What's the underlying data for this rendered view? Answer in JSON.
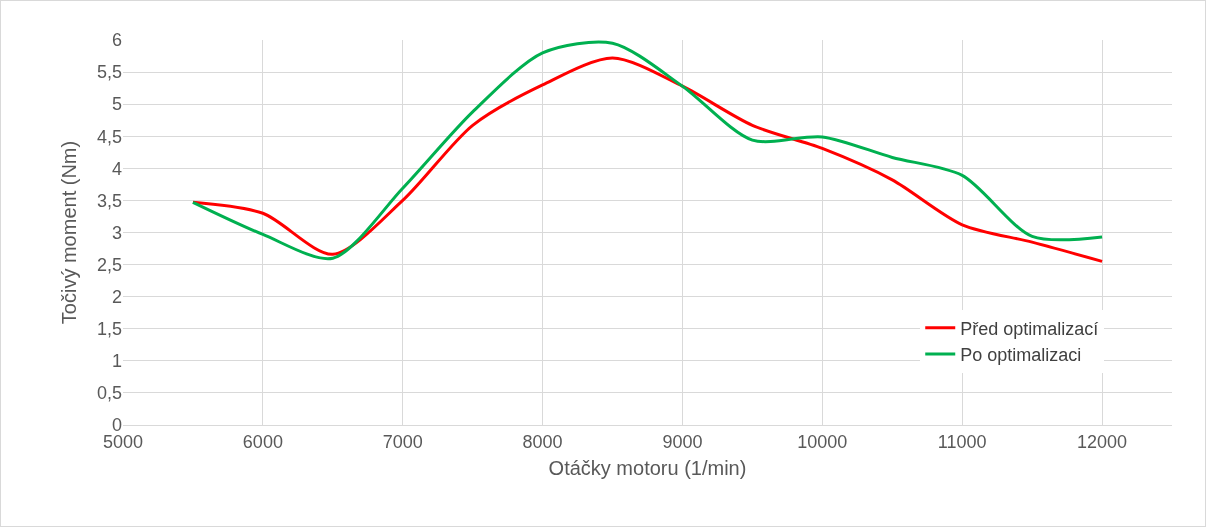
{
  "chart_data": {
    "type": "line",
    "xlabel": "Otáčky motoru (1/min)",
    "ylabel": "Točivý moment (Nm)",
    "x": [
      5500,
      6000,
      6500,
      7000,
      7500,
      8000,
      8500,
      9000,
      9500,
      10000,
      10500,
      11000,
      11500,
      12000
    ],
    "series": [
      {
        "name": "Před optimalizací",
        "color": "#ff0000",
        "values": [
          3.47,
          3.3,
          2.66,
          3.5,
          4.67,
          5.3,
          5.72,
          5.28,
          4.67,
          4.31,
          3.82,
          3.12,
          2.85,
          2.55
        ]
      },
      {
        "name": "Po optimalizaci",
        "color": "#00b050",
        "values": [
          3.47,
          2.97,
          2.6,
          3.69,
          4.88,
          5.8,
          5.95,
          5.28,
          4.44,
          4.49,
          4.17,
          3.89,
          2.94,
          2.93
        ]
      }
    ],
    "xlim": [
      5000,
      12500
    ],
    "xticks": [
      5000,
      6000,
      7000,
      8000,
      9000,
      10000,
      11000,
      12000
    ],
    "ylim": [
      0,
      6
    ],
    "yticks": [
      0,
      {
        "value": 0.5,
        "label": "0,5"
      },
      1,
      {
        "value": 1.5,
        "label": "1,5"
      },
      2,
      {
        "value": 2.5,
        "label": "2,5"
      },
      3,
      {
        "value": 3.5,
        "label": "3,5"
      },
      4,
      {
        "value": 4.5,
        "label": "4,5"
      },
      5,
      {
        "value": 5.5,
        "label": "5,5"
      },
      6
    ],
    "grid": true,
    "legend": "right",
    "marker": "none",
    "line_style": "solid"
  }
}
